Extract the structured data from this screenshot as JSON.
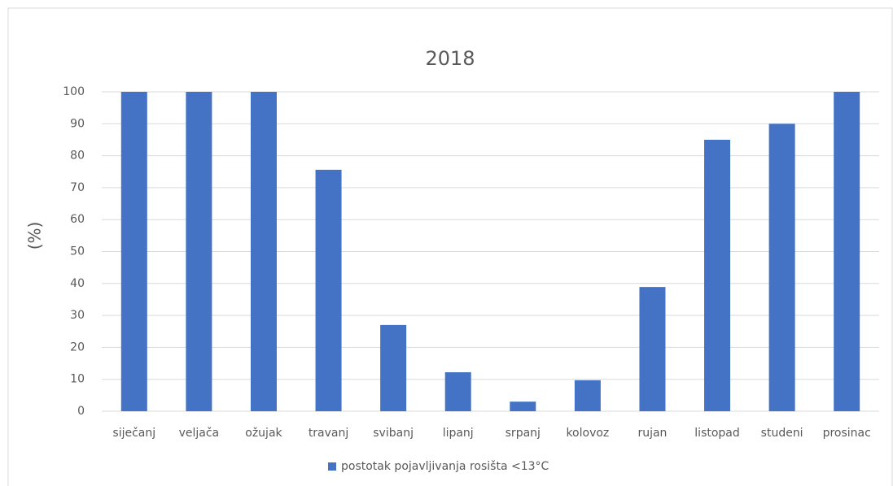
{
  "chart_data": {
    "type": "bar",
    "title": "2018",
    "y_label": "(%)",
    "categories": [
      "siječanj",
      "veljača",
      "ožujak",
      "travanj",
      "svibanj",
      "lipanj",
      "srpanj",
      "kolovoz",
      "rujan",
      "listopad",
      "studeni",
      "prosinac"
    ],
    "series": [
      {
        "name": "postotak pojavljivanja rosišta <13°C",
        "color": "#4472c4",
        "values": [
          100,
          100,
          100,
          75.6,
          27,
          12.2,
          3,
          9.7,
          38.9,
          85,
          90,
          100
        ]
      }
    ],
    "ylim": [
      0,
      100
    ],
    "yticks": [
      0,
      10,
      20,
      30,
      40,
      50,
      60,
      70,
      80,
      90,
      100
    ],
    "grid": true,
    "legend": "bottom"
  }
}
